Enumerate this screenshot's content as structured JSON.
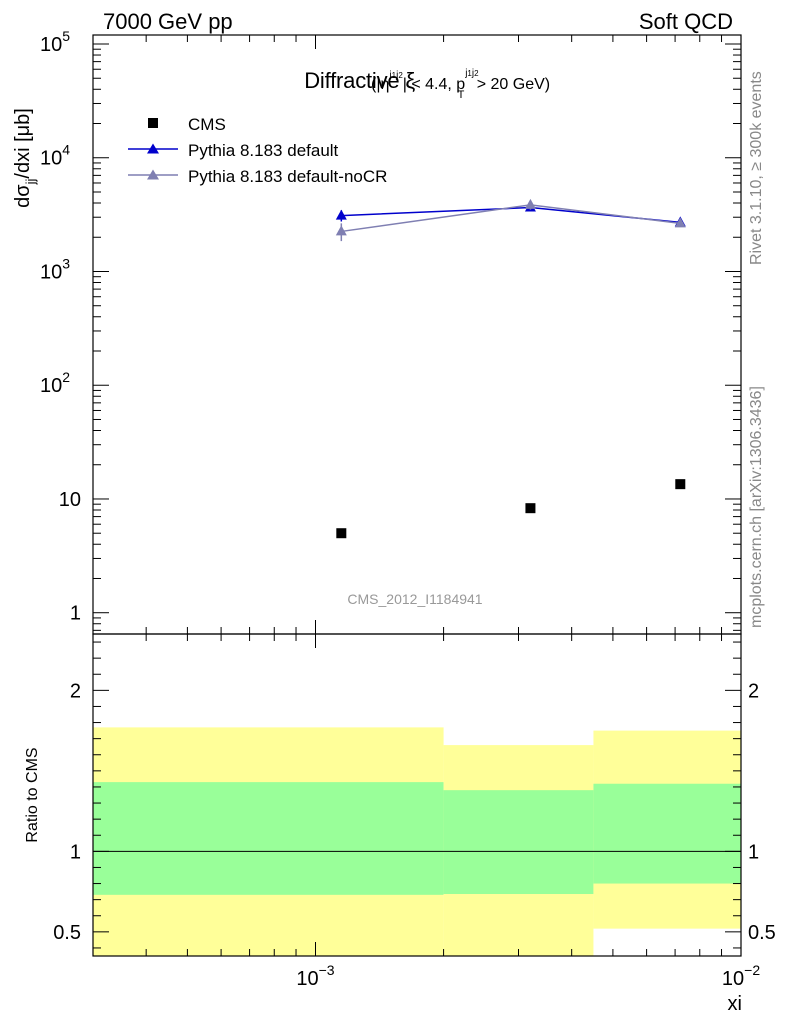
{
  "header": {
    "left": "7000 GeV pp",
    "right": "Soft QCD"
  },
  "side_labels": {
    "rivet": "Rivet 3.1.10, ≥ 300k events",
    "mcplots": "mcplots.cern.ch [arXiv:1306.3436]"
  },
  "chart_data": [
    {
      "type": "scatter",
      "title": "Diffractive ξ",
      "title_cuts": "(|η^{j1j2}| < 4.4, p_T^{j1j2} > 20 GeV)",
      "ylabel": "dσ_jj/dxi [μb]",
      "xlabel": "xi",
      "x_scale": "log",
      "y_scale": "log",
      "xlim": [
        0.0003,
        0.01
      ],
      "ylim": [
        0.65,
        120000
      ],
      "x_ticks": [
        {
          "value": 0.001,
          "label": "10",
          "exp": "−3"
        },
        {
          "value": 0.01,
          "label": "10",
          "exp": "−2"
        }
      ],
      "y_ticks": [
        {
          "value": 1,
          "label": "1",
          "exp": ""
        },
        {
          "value": 10,
          "label": "10",
          "exp": ""
        },
        {
          "value": 100,
          "label": "10",
          "exp": "2"
        },
        {
          "value": 1000,
          "label": "10",
          "exp": "3"
        },
        {
          "value": 10000,
          "label": "10",
          "exp": "4"
        },
        {
          "value": 100000,
          "label": "10",
          "exp": "5"
        }
      ],
      "watermark": "CMS_2012_I1184941",
      "legend_position": "top-left",
      "series": [
        {
          "name": "CMS",
          "marker": "square",
          "color": "#000000",
          "points": [
            {
              "x": 0.00115,
              "y": 5.0
            },
            {
              "x": 0.0032,
              "y": 8.3
            },
            {
              "x": 0.0072,
              "y": 13.5
            }
          ]
        },
        {
          "name": "Pythia 8.183 default",
          "marker": "triangle",
          "color": "#0000cc",
          "points": [
            {
              "x": 0.00115,
              "y": 3100,
              "err": 350
            },
            {
              "x": 0.0032,
              "y": 3650,
              "err": 250
            },
            {
              "x": 0.0072,
              "y": 2700,
              "err": 150
            }
          ]
        },
        {
          "name": "Pythia 8.183 default-noCR",
          "marker": "triangle",
          "color": "#7f7fb2",
          "points": [
            {
              "x": 0.00115,
              "y": 2250,
              "err": 400
            },
            {
              "x": 0.0032,
              "y": 3850,
              "err": 350
            },
            {
              "x": 0.0072,
              "y": 2650,
              "err": 150
            }
          ]
        }
      ]
    },
    {
      "type": "area",
      "ylabel": "Ratio to CMS",
      "xlabel": "xi",
      "x_scale": "log",
      "xlim": [
        0.0003,
        0.01
      ],
      "ylim": [
        0.35,
        2.35
      ],
      "y_ticks": [
        {
          "value": 0.5,
          "label": "0.5"
        },
        {
          "value": 1,
          "label": "1"
        },
        {
          "value": 2,
          "label": "2"
        }
      ],
      "reference_line": 1,
      "bins": [
        {
          "xlow": 0.0003,
          "xhigh": 0.002,
          "outer": [
            0.35,
            1.77
          ],
          "inner": [
            0.73,
            1.43
          ]
        },
        {
          "xlow": 0.002,
          "xhigh": 0.0045,
          "outer": [
            0.35,
            1.66
          ],
          "inner": [
            0.735,
            1.38
          ]
        },
        {
          "xlow": 0.0045,
          "xhigh": 0.01,
          "outer": [
            0.52,
            1.75
          ],
          "inner": [
            0.8,
            1.42
          ]
        }
      ],
      "band_colors": {
        "outer": "#ffff99",
        "inner": "#99ff99"
      }
    }
  ]
}
